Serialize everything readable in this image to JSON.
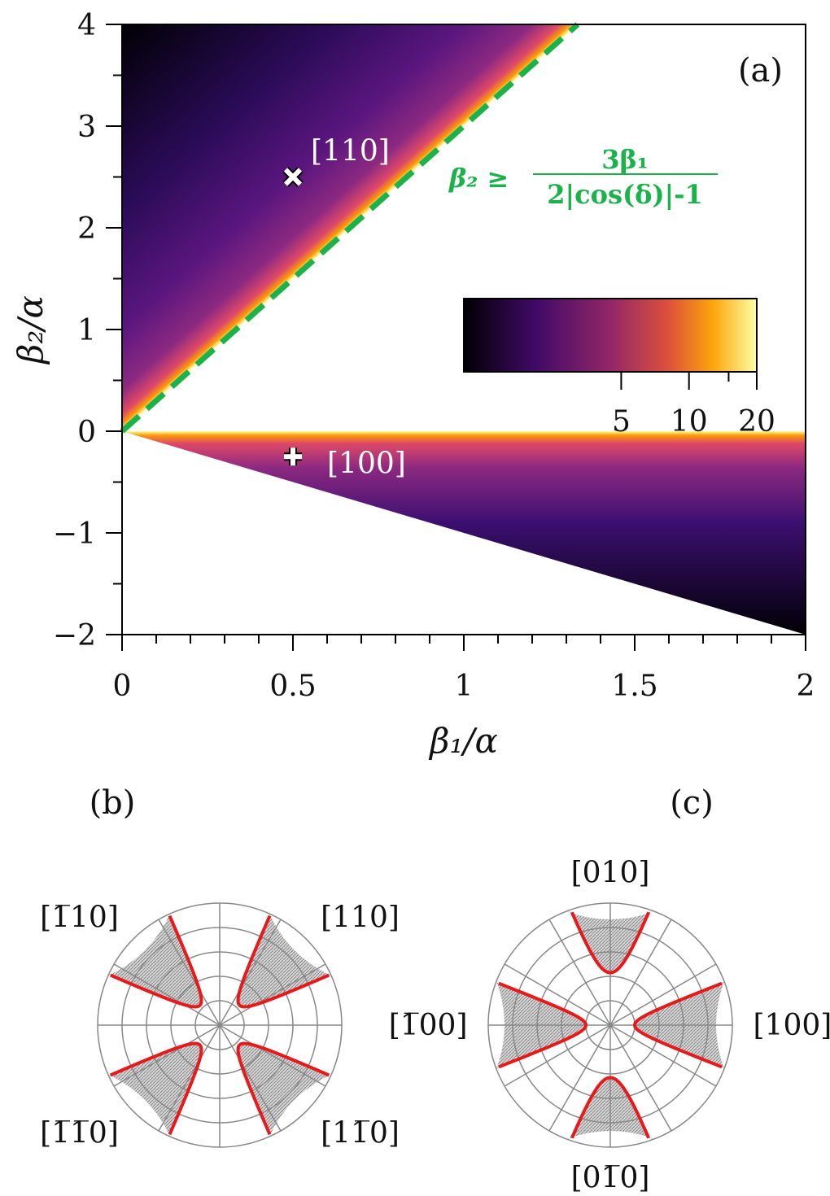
{
  "chart_data": [
    {
      "type": "map2d",
      "title": "(a)",
      "xlabel": "β₁/α",
      "ylabel": "β₂/α",
      "xlim": [
        0,
        2
      ],
      "ylim": [
        -2,
        4
      ],
      "xticks": [
        0,
        0.5,
        1,
        1.5,
        2
      ],
      "xminorticks": [
        0.1,
        0.2,
        0.3,
        0.4,
        0.6,
        0.7,
        0.8,
        0.9,
        1.1,
        1.2,
        1.3,
        1.4,
        1.6,
        1.7,
        1.8,
        1.9
      ],
      "yticks": [
        {
          "value": -2,
          "label": "−2"
        },
        {
          "value": -1,
          "label": "−1"
        },
        0,
        1,
        2,
        3,
        4
      ],
      "yminorticks": [
        -1.5,
        -0.5,
        0.5,
        1.5,
        2.5,
        3.5
      ],
      "regions": [
        {
          "x": [
            0,
            0,
            1.333
          ],
          "y": [
            0,
            4,
            4
          ]
        },
        {
          "x": [
            0,
            2,
            2
          ],
          "y": [
            0,
            0,
            -2
          ]
        }
      ],
      "boundary_line": {
        "x": [
          0,
          1.333
        ],
        "y": [
          0,
          4
        ],
        "color": "#1bb24b"
      },
      "equation": {
        "lhs": "β₂ ≥",
        "numerator": "3β₁",
        "denominator": "2|cos(δ)|-1",
        "color": "#1bb24b"
      },
      "markers": [
        {
          "label": "[110]",
          "symbol": "x",
          "x": 0.5,
          "y": 2.5
        },
        {
          "label": "[100]",
          "symbol": "plus",
          "x": 0.5,
          "y": -0.25
        }
      ],
      "colorbar": {
        "clim": [
          1,
          20
        ],
        "log": true,
        "ticks": [
          5,
          10,
          20
        ],
        "minor_ticks": [
          15
        ]
      }
    },
    {
      "type": "polar",
      "title": "(b)",
      "sectors": [
        {
          "label": "[110]",
          "start": 24,
          "end": 66,
          "inner_radius": 0.23
        },
        {
          "label": "[1̅10]",
          "start": 114,
          "end": 156,
          "inner_radius": 0.23
        },
        {
          "label": "[1̅1̅0]",
          "start": 204,
          "end": 246,
          "inner_radius": 0.23
        },
        {
          "label": "[11̅0]",
          "start": 294,
          "end": 336,
          "inner_radius": 0.23
        }
      ]
    },
    {
      "type": "polar",
      "title": "(c)",
      "sectors": [
        {
          "label": "[100]",
          "start": -21,
          "end": 21,
          "inner_radius": 0.2
        },
        {
          "label": "[010]",
          "start": 69,
          "end": 111,
          "inner_radius": 0.43
        },
        {
          "label": "[1̅00]",
          "start": 159,
          "end": 201,
          "inner_radius": 0.2
        },
        {
          "label": "[01̅0]",
          "start": 249,
          "end": 291,
          "inner_radius": 0.43
        }
      ]
    }
  ]
}
